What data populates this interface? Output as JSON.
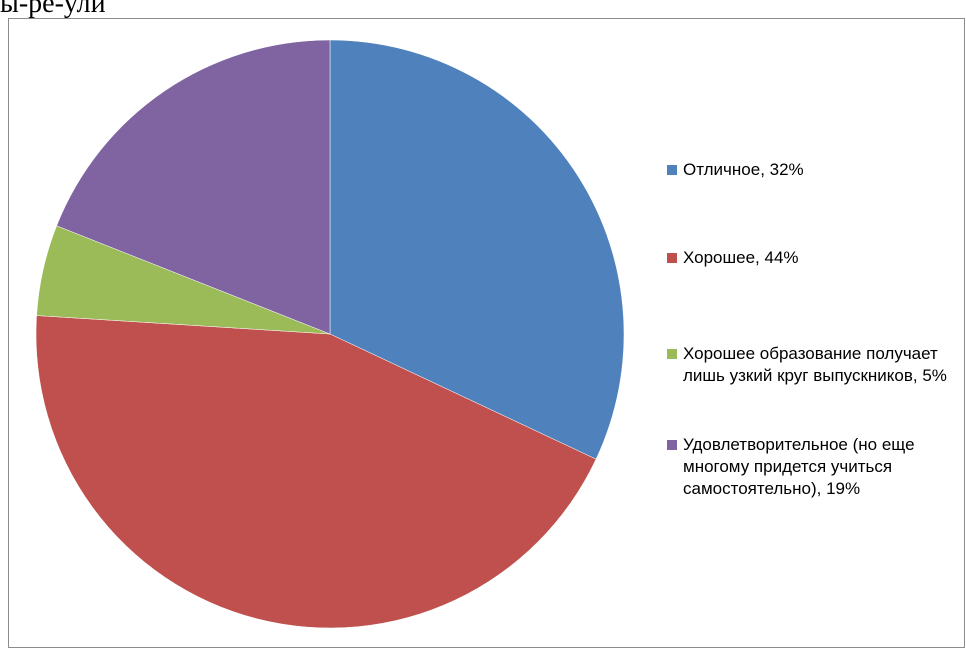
{
  "top_text": "ы-ре-ули",
  "chart_data": {
    "type": "pie",
    "title": "",
    "slices": [
      {
        "label": "Отличное, 32%",
        "value": 32,
        "color": "#4F81BD"
      },
      {
        "label": "Хорошее, 44%",
        "value": 44,
        "color": "#C0504D"
      },
      {
        "label": "Хорошее образование получает лишь узкий круг выпускников, 5%",
        "value": 5,
        "color": "#9BBB59"
      },
      {
        "label": "Удовлетворительное (но еще многому придется учиться самостоятельно), 19%",
        "value": 19,
        "color": "#8064A2"
      }
    ],
    "legend_position": "right"
  }
}
